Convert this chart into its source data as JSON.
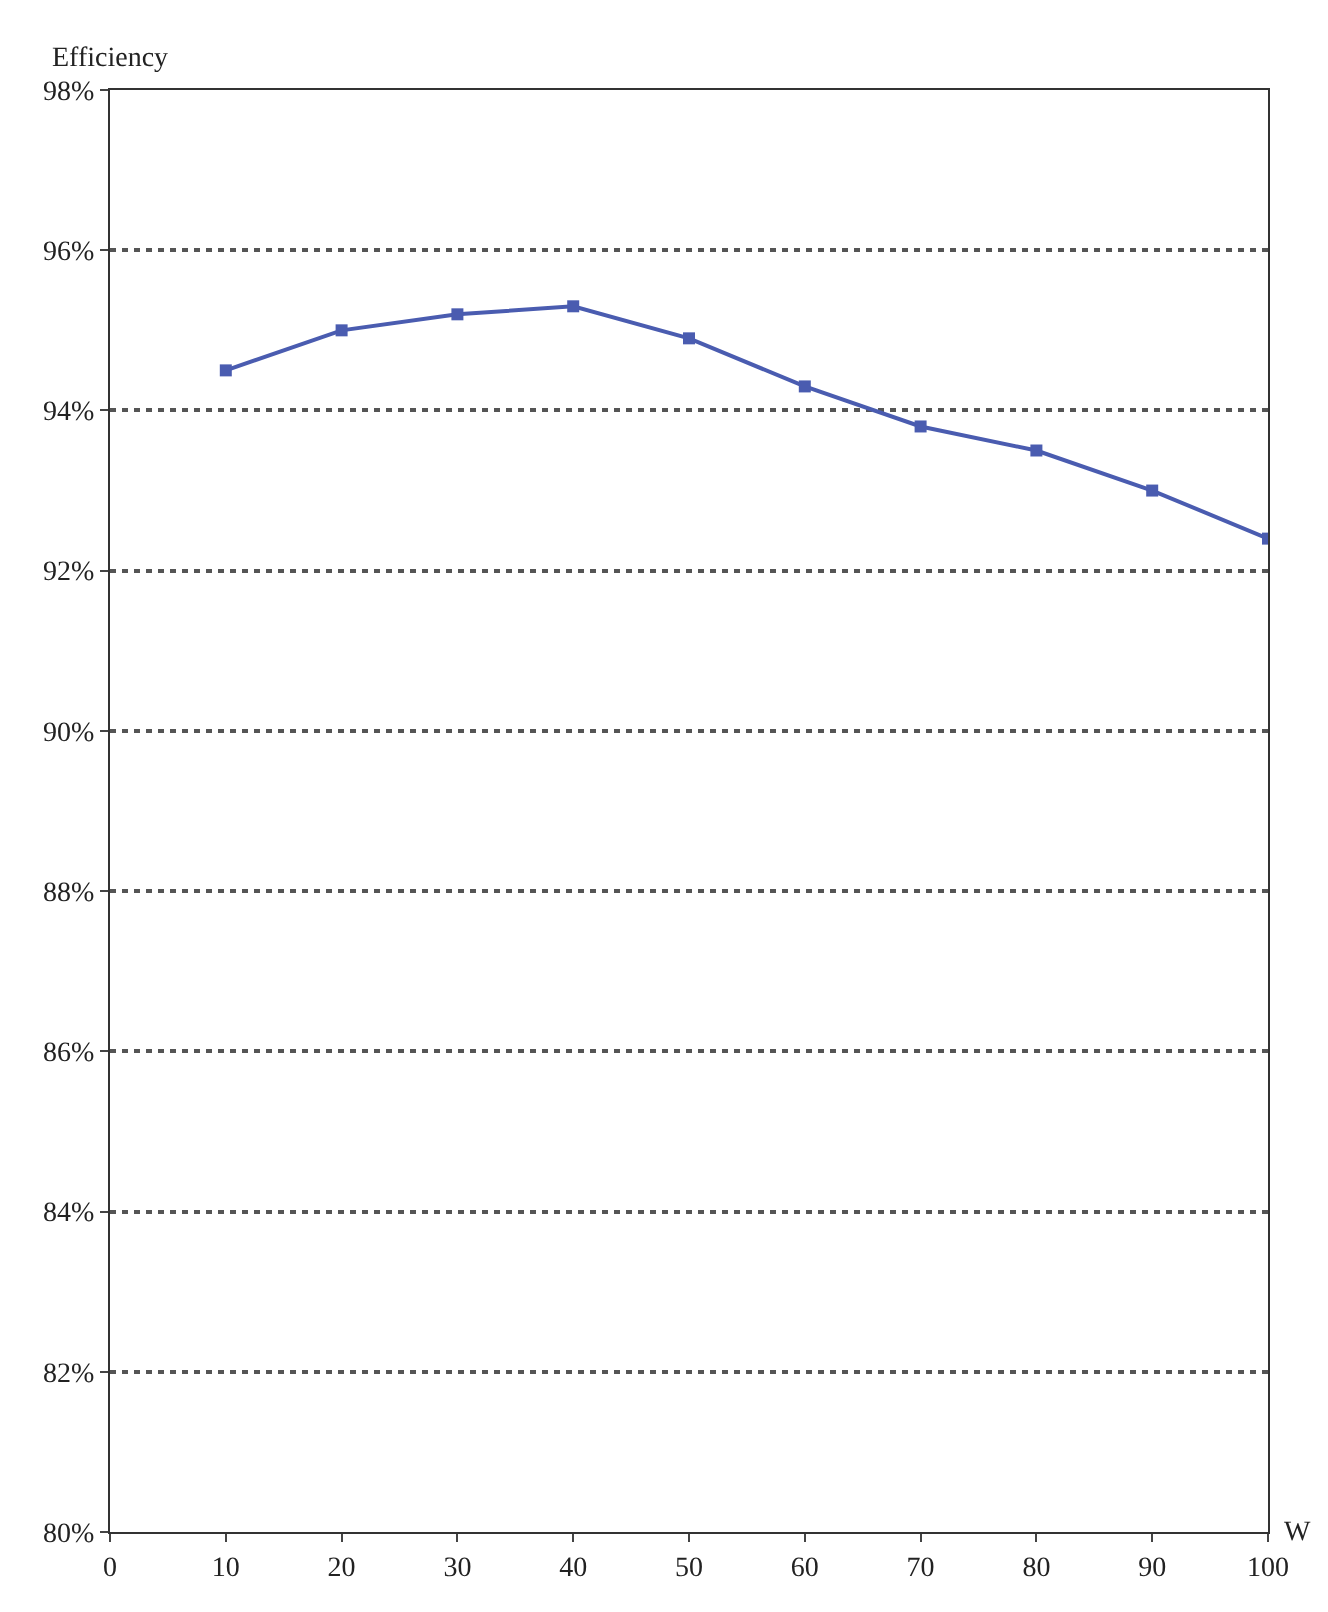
{
  "chart_data": {
    "type": "line",
    "xlabel": "W",
    "ylabel": "Efficiency",
    "x": [
      10,
      20,
      30,
      40,
      50,
      60,
      70,
      80,
      90,
      100
    ],
    "series": [
      {
        "color": "#4a5cb0",
        "values": [
          94.5,
          95.0,
          95.2,
          95.3,
          94.9,
          94.3,
          93.8,
          93.5,
          93.0,
          92.4
        ]
      }
    ],
    "xlim": [
      0,
      100
    ],
    "xticks": [
      0,
      10,
      20,
      30,
      40,
      50,
      60,
      70,
      80,
      90,
      100
    ],
    "ylim": [
      80,
      98
    ],
    "yticks": [
      {
        "value": 80,
        "label": "80%"
      },
      {
        "value": 82,
        "label": "82%"
      },
      {
        "value": 84,
        "label": "84%"
      },
      {
        "value": 86,
        "label": "86%"
      },
      {
        "value": 88,
        "label": "88%"
      },
      {
        "value": 90,
        "label": "90%"
      },
      {
        "value": 92,
        "label": "92%"
      },
      {
        "value": 94,
        "label": "94%"
      },
      {
        "value": 96,
        "label": "96%"
      },
      {
        "value": 98,
        "label": "98%"
      }
    ],
    "grid": "y",
    "marker": "square",
    "line_style": "solid",
    "legend": false
  }
}
